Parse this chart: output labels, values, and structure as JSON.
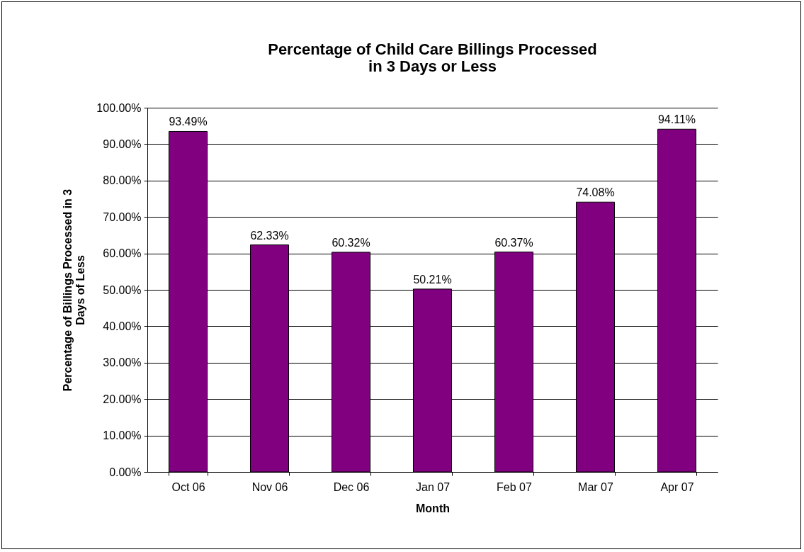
{
  "chart_data": {
    "type": "bar",
    "title": "Percentage of Child Care Billings Processed\nin 3 Days or Less",
    "xlabel": "Month",
    "ylabel": "Percentage of Billings Processed in 3\nDays of Less",
    "categories": [
      "Oct 06",
      "Nov 06",
      "Dec 06",
      "Jan 07",
      "Feb 07",
      "Mar 07",
      "Apr 07"
    ],
    "values": [
      93.49,
      62.33,
      60.32,
      50.21,
      60.37,
      74.08,
      94.11
    ],
    "value_labels": [
      "93.49%",
      "62.33%",
      "60.32%",
      "50.21%",
      "60.37%",
      "74.08%",
      "94.11%"
    ],
    "color": "#800080",
    "ylim": [
      0,
      100
    ],
    "yticks": [
      {
        "value": 0,
        "label": "0.00%"
      },
      {
        "value": 10,
        "label": "10.00%"
      },
      {
        "value": 20,
        "label": "20.00%"
      },
      {
        "value": 30,
        "label": "30.00%"
      },
      {
        "value": 40,
        "label": "40.00%"
      },
      {
        "value": 50,
        "label": "50.00%"
      },
      {
        "value": 60,
        "label": "60.00%"
      },
      {
        "value": 70,
        "label": "70.00%"
      },
      {
        "value": 80,
        "label": "80.00%"
      },
      {
        "value": 90,
        "label": "90.00%"
      },
      {
        "value": 100,
        "label": "100.00%"
      }
    ],
    "grid": "y"
  }
}
